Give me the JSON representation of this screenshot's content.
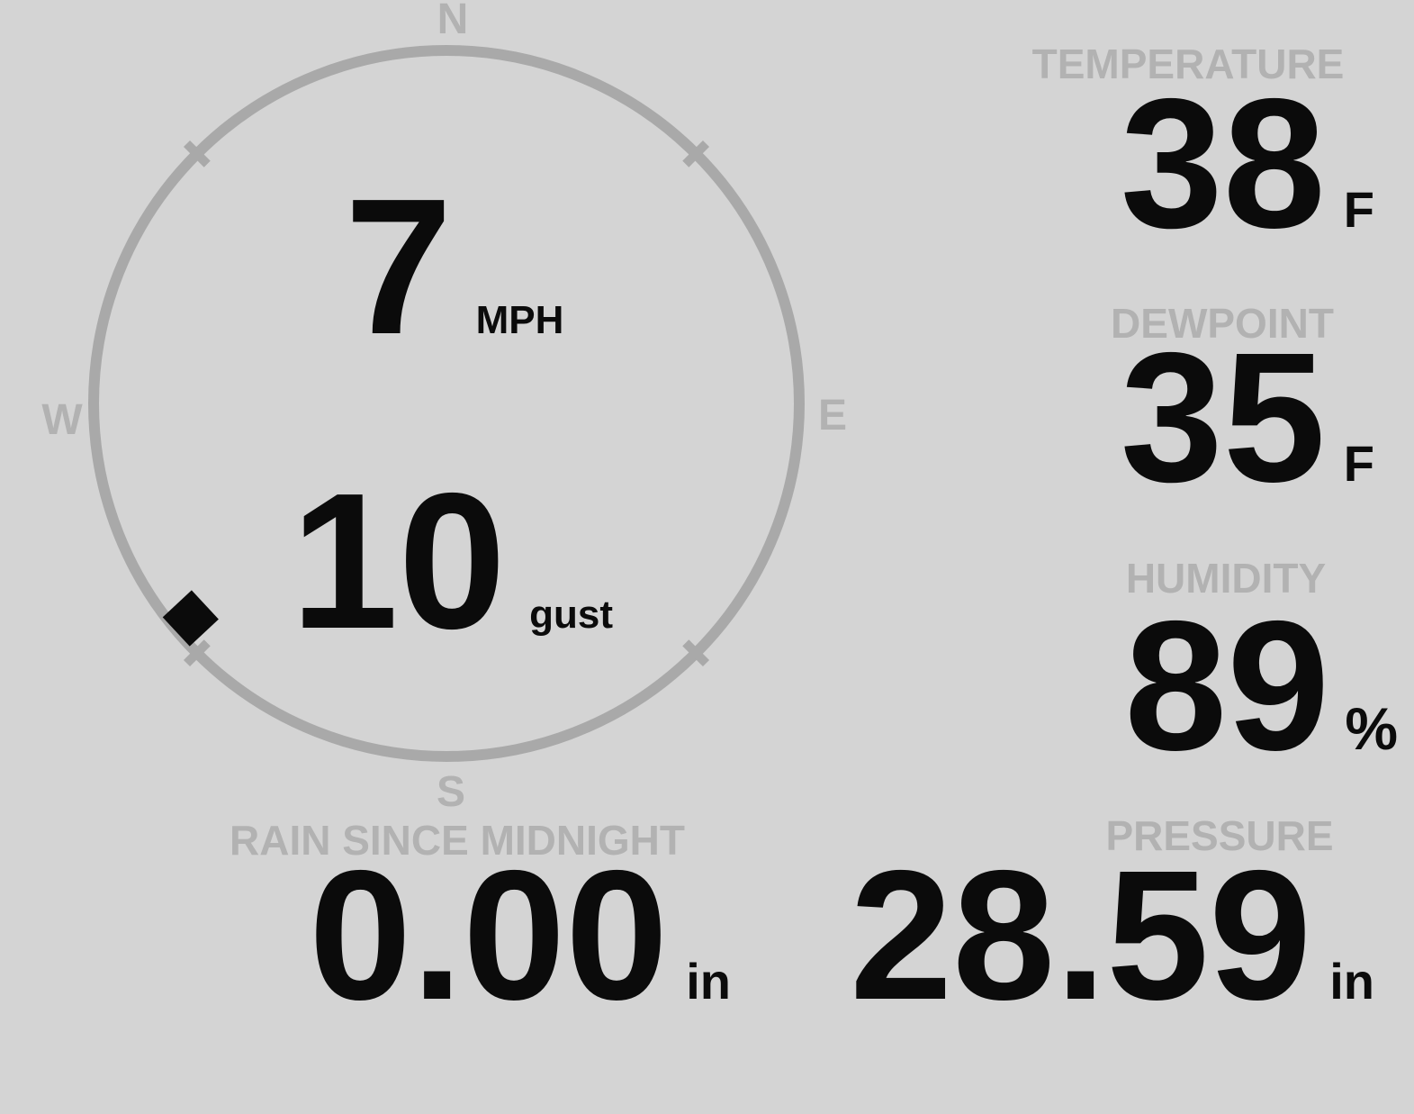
{
  "colors": {
    "background": "#d4d4d4",
    "label_gray": "#b2b2b2",
    "ring_gray": "#a9a9a9",
    "value_black": "#0b0b0b"
  },
  "compass": {
    "cardinals": {
      "north": "N",
      "east": "E",
      "south": "S",
      "west": "W"
    },
    "wind_direction_deg": 230,
    "speed": {
      "value": "7",
      "unit": "MPH"
    },
    "gust": {
      "value": "10",
      "unit": "gust"
    }
  },
  "metrics": {
    "temperature": {
      "label": "TEMPERATURE",
      "value": "38",
      "unit": "F"
    },
    "dewpoint": {
      "label": "DEWPOINT",
      "value": "35",
      "unit": "F"
    },
    "humidity": {
      "label": "HUMIDITY",
      "value": "89",
      "unit": "%"
    },
    "rain": {
      "label": "RAIN SINCE MIDNIGHT",
      "value": "0.00",
      "unit": "in"
    },
    "pressure": {
      "label": "PRESSURE",
      "value": "28.59",
      "unit": "in"
    }
  }
}
